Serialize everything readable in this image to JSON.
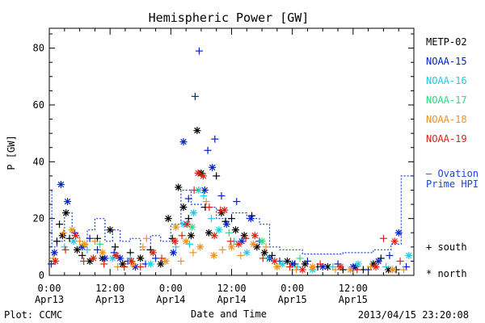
{
  "chart_data": {
    "type": "scatter",
    "title": "Hemispheric Power [GW]",
    "ylabel": "P [GW]",
    "xlabel": "Date and Time",
    "ylim": [
      0,
      87
    ],
    "xlim_hours": [
      0,
      72
    ],
    "yticks": [
      0,
      20,
      40,
      60,
      80
    ],
    "xticks": [
      {
        "hour": 0,
        "time": "0:00",
        "date": "Apr13"
      },
      {
        "hour": 12,
        "time": "12:00",
        "date": "Apr13"
      },
      {
        "hour": 24,
        "time": "0:00",
        "date": "Apr14"
      },
      {
        "hour": 36,
        "time": "12:00",
        "date": "Apr14"
      },
      {
        "hour": 48,
        "time": "0:00",
        "date": "Apr15"
      },
      {
        "hour": 60,
        "time": "12:00",
        "date": "Apr15"
      }
    ],
    "legend": [
      {
        "name": "METP-02",
        "color": "#000000"
      },
      {
        "name": "NOAA-15",
        "color": "#0022cc"
      },
      {
        "name": "NOAA-16",
        "color": "#22c8e8"
      },
      {
        "name": "NOAA-17",
        "color": "#22e080"
      },
      {
        "name": "NOAA-18",
        "color": "#f09020"
      },
      {
        "name": "NOAA-19",
        "color": "#e02010"
      }
    ],
    "ovation_label": "— Ovation Prime HPI",
    "marker_key": [
      {
        "symbol": "+",
        "label": "south"
      },
      {
        "symbol": "*",
        "label": "north"
      }
    ],
    "ovation_series": {
      "name": "Ovation Prime HPI",
      "color": "#1a44dd",
      "values": [
        [
          0,
          30
        ],
        [
          0.5,
          30
        ],
        [
          0.5,
          10
        ],
        [
          1.5,
          10
        ],
        [
          1.5,
          12
        ],
        [
          3,
          12
        ],
        [
          3,
          22
        ],
        [
          4.5,
          22
        ],
        [
          4.5,
          14
        ],
        [
          6,
          14
        ],
        [
          6,
          10
        ],
        [
          7.5,
          10
        ],
        [
          7.5,
          16
        ],
        [
          9,
          16
        ],
        [
          9,
          20
        ],
        [
          11,
          20
        ],
        [
          11,
          12
        ],
        [
          12.5,
          12
        ],
        [
          12.5,
          16
        ],
        [
          14,
          16
        ],
        [
          14,
          12
        ],
        [
          16,
          12
        ],
        [
          16,
          13
        ],
        [
          18,
          13
        ],
        [
          18,
          9
        ],
        [
          20,
          9
        ],
        [
          20,
          14
        ],
        [
          22,
          14
        ],
        [
          22,
          12
        ],
        [
          24,
          12
        ],
        [
          24,
          18
        ],
        [
          26,
          18
        ],
        [
          26,
          30
        ],
        [
          28,
          30
        ],
        [
          28,
          25
        ],
        [
          30,
          25
        ],
        [
          30,
          24
        ],
        [
          33,
          24
        ],
        [
          33,
          20
        ],
        [
          36,
          20
        ],
        [
          36,
          22
        ],
        [
          39,
          22
        ],
        [
          39,
          20
        ],
        [
          41.5,
          20
        ],
        [
          41.5,
          18
        ],
        [
          43.5,
          18
        ],
        [
          43.5,
          10
        ],
        [
          45.5,
          10
        ],
        [
          45.5,
          9
        ],
        [
          50,
          9
        ],
        [
          50,
          7.5
        ],
        [
          58,
          7.5
        ],
        [
          58,
          8
        ],
        [
          64,
          8
        ],
        [
          64,
          9
        ],
        [
          67.5,
          9
        ],
        [
          67.5,
          11
        ],
        [
          69.5,
          11
        ],
        [
          69.5,
          35
        ],
        [
          72,
          35
        ]
      ]
    },
    "series": [
      {
        "name": "METP-02",
        "color": "#000000",
        "points": [
          [
            1.5,
            12,
            "s"
          ],
          [
            2,
            18,
            "s"
          ],
          [
            2.6,
            14,
            "n"
          ],
          [
            3.3,
            22,
            "n"
          ],
          [
            4,
            13,
            "s"
          ],
          [
            5.5,
            9,
            "n"
          ],
          [
            6.5,
            7,
            "s"
          ],
          [
            8,
            5,
            "n"
          ],
          [
            9.5,
            13,
            "s"
          ],
          [
            10.5,
            6,
            "n"
          ],
          [
            12,
            16,
            "n"
          ],
          [
            13,
            10,
            "s"
          ],
          [
            14.5,
            4,
            "n"
          ],
          [
            16,
            8,
            "s"
          ],
          [
            18,
            6,
            "n"
          ],
          [
            20,
            9,
            "s"
          ],
          [
            22,
            4,
            "n"
          ],
          [
            23.5,
            20,
            "n"
          ],
          [
            24.3,
            13,
            "s"
          ],
          [
            25.5,
            31,
            "n"
          ],
          [
            26.5,
            24,
            "n"
          ],
          [
            27.5,
            20,
            "s"
          ],
          [
            28,
            14,
            "n"
          ],
          [
            29.2,
            51,
            "n"
          ],
          [
            30,
            36,
            "n"
          ],
          [
            30.8,
            24,
            "s"
          ],
          [
            31.5,
            15,
            "n"
          ],
          [
            33,
            35,
            "s"
          ],
          [
            34,
            22,
            "n"
          ],
          [
            34.8,
            19,
            "s"
          ],
          [
            36,
            20,
            "s"
          ],
          [
            36.8,
            16,
            "n"
          ],
          [
            38.5,
            14,
            "n"
          ],
          [
            40,
            21,
            "s"
          ],
          [
            41,
            10,
            "n"
          ],
          [
            42.5,
            8,
            "n"
          ],
          [
            44,
            7,
            "s"
          ],
          [
            47,
            5,
            "n"
          ],
          [
            48.5,
            4,
            "s"
          ],
          [
            50.5,
            4,
            "n"
          ],
          [
            53,
            3,
            "s"
          ],
          [
            55,
            3,
            "n"
          ],
          [
            58,
            2,
            "s"
          ],
          [
            60.5,
            3,
            "n"
          ],
          [
            62,
            2,
            "s"
          ],
          [
            64,
            4,
            "n"
          ],
          [
            65.5,
            6,
            "s"
          ],
          [
            67,
            2,
            "n"
          ],
          [
            68.5,
            2,
            "s"
          ]
        ]
      },
      {
        "name": "NOAA-15",
        "color": "#0022cc",
        "points": [
          [
            0.4,
            4,
            "s"
          ],
          [
            1,
            8,
            "n"
          ],
          [
            2.3,
            32,
            "n"
          ],
          [
            3.6,
            26,
            "n"
          ],
          [
            5,
            15,
            "s"
          ],
          [
            6.5,
            10,
            "n"
          ],
          [
            8,
            13,
            "s"
          ],
          [
            9.5,
            9,
            "s"
          ],
          [
            11,
            6,
            "n"
          ],
          [
            12.8,
            8,
            "s"
          ],
          [
            14,
            6,
            "n"
          ],
          [
            15.5,
            5,
            "s"
          ],
          [
            17,
            3,
            "n"
          ],
          [
            19,
            4,
            "s"
          ],
          [
            21,
            6,
            "s"
          ],
          [
            24.5,
            8,
            "n"
          ],
          [
            26.5,
            47,
            "n"
          ],
          [
            27.5,
            27,
            "s"
          ],
          [
            28.8,
            63,
            "s"
          ],
          [
            29.6,
            79,
            "s"
          ],
          [
            30.7,
            30,
            "n"
          ],
          [
            31.3,
            44,
            "s"
          ],
          [
            32.2,
            38,
            "n"
          ],
          [
            32.7,
            48,
            "s"
          ],
          [
            34,
            28,
            "s"
          ],
          [
            35,
            18,
            "n"
          ],
          [
            37,
            26,
            "s"
          ],
          [
            38,
            12,
            "n"
          ],
          [
            39.8,
            20,
            "n"
          ],
          [
            41.5,
            12,
            "s"
          ],
          [
            43.5,
            6,
            "n"
          ],
          [
            45.5,
            5,
            "s"
          ],
          [
            48,
            4,
            "n"
          ],
          [
            51,
            5,
            "s"
          ],
          [
            54,
            3,
            "n"
          ],
          [
            57,
            4,
            "s"
          ],
          [
            60,
            3,
            "n"
          ],
          [
            63,
            2,
            "s"
          ],
          [
            65,
            5,
            "n"
          ],
          [
            67.2,
            7,
            "s"
          ],
          [
            69,
            15,
            "n"
          ],
          [
            70.5,
            3,
            "s"
          ]
        ]
      },
      {
        "name": "NOAA-16",
        "color": "#22c8e8",
        "points": [
          [
            3,
            10,
            "s"
          ],
          [
            4.8,
            12,
            "n"
          ],
          [
            7.5,
            9,
            "s"
          ],
          [
            12.5,
            6,
            "n"
          ],
          [
            16,
            6,
            "s"
          ],
          [
            20,
            4,
            "n"
          ],
          [
            25,
            10,
            "s"
          ],
          [
            26.5,
            18,
            "n"
          ],
          [
            27.7,
            11,
            "s"
          ],
          [
            28.5,
            22,
            "n"
          ],
          [
            29.5,
            30,
            "n"
          ],
          [
            30.5,
            28,
            "s"
          ],
          [
            32,
            20,
            "s"
          ],
          [
            33.5,
            16,
            "n"
          ],
          [
            36.5,
            12,
            "s"
          ],
          [
            39,
            8,
            "n"
          ],
          [
            43,
            6,
            "s"
          ],
          [
            46,
            4,
            "n"
          ],
          [
            49,
            3,
            "s"
          ],
          [
            52,
            2,
            "n"
          ],
          [
            56,
            3,
            "s"
          ],
          [
            61,
            4,
            "n"
          ],
          [
            66.5,
            3,
            "s"
          ],
          [
            71,
            7,
            "n"
          ]
        ]
      },
      {
        "name": "NOAA-17",
        "color": "#22e080",
        "points": [
          [
            10,
            11,
            "s"
          ],
          [
            28.2,
            17,
            "n"
          ],
          [
            35.5,
            15,
            "s"
          ],
          [
            42,
            12,
            "n"
          ],
          [
            49.5,
            6,
            "s"
          ]
        ]
      },
      {
        "name": "NOAA-18",
        "color": "#f09020",
        "points": [
          [
            0.8,
            6,
            "s"
          ],
          [
            2.8,
            15,
            "s"
          ],
          [
            4.5,
            16,
            "n"
          ],
          [
            6,
            12,
            "s"
          ],
          [
            7,
            11,
            "n"
          ],
          [
            9,
            12,
            "s"
          ],
          [
            10.5,
            8,
            "n"
          ],
          [
            13.5,
            3,
            "s"
          ],
          [
            16.5,
            4,
            "n"
          ],
          [
            18.5,
            10,
            "s"
          ],
          [
            19.2,
            13,
            "s"
          ],
          [
            23,
            5,
            "n"
          ],
          [
            25,
            17,
            "n"
          ],
          [
            26,
            5,
            "s"
          ],
          [
            27,
            12,
            "n"
          ],
          [
            28.4,
            8,
            "s"
          ],
          [
            29.8,
            10,
            "n"
          ],
          [
            31,
            26,
            "s"
          ],
          [
            32.5,
            7,
            "n"
          ],
          [
            34.2,
            9,
            "s"
          ],
          [
            36,
            10,
            "n"
          ],
          [
            37.8,
            7,
            "s"
          ],
          [
            40.3,
            11,
            "n"
          ],
          [
            42.8,
            10,
            "s"
          ],
          [
            45,
            3,
            "n"
          ],
          [
            48.8,
            2,
            "s"
          ],
          [
            52,
            3,
            "n"
          ],
          [
            56.5,
            2,
            "s"
          ],
          [
            59.5,
            2,
            "n"
          ],
          [
            63.5,
            3,
            "s"
          ],
          [
            67.8,
            2,
            "n"
          ],
          [
            70,
            2,
            "s"
          ]
        ]
      },
      {
        "name": "NOAA-19",
        "color": "#e02010",
        "points": [
          [
            1.2,
            5,
            "n"
          ],
          [
            3.2,
            9,
            "s"
          ],
          [
            5.2,
            14,
            "n"
          ],
          [
            6.8,
            5,
            "s"
          ],
          [
            8.7,
            6,
            "n"
          ],
          [
            10.8,
            4,
            "s"
          ],
          [
            13.2,
            7,
            "n"
          ],
          [
            14.8,
            3,
            "s"
          ],
          [
            16.2,
            5,
            "n"
          ],
          [
            18,
            3,
            "s"
          ],
          [
            20.5,
            8,
            "n"
          ],
          [
            22.2,
            6,
            "s"
          ],
          [
            24.8,
            12,
            "n"
          ],
          [
            26.2,
            14,
            "s"
          ],
          [
            27.2,
            18,
            "n"
          ],
          [
            28.6,
            30,
            "s"
          ],
          [
            29.4,
            36,
            "n"
          ],
          [
            30.4,
            35,
            "n"
          ],
          [
            31.6,
            24,
            "s"
          ],
          [
            32.6,
            14,
            "n"
          ],
          [
            33.8,
            23,
            "s"
          ],
          [
            34.6,
            23,
            "n"
          ],
          [
            35.8,
            12,
            "s"
          ],
          [
            37.4,
            11,
            "n"
          ],
          [
            38.8,
            13,
            "s"
          ],
          [
            40.6,
            14,
            "n"
          ],
          [
            42.2,
            6,
            "s"
          ],
          [
            44.5,
            5,
            "n"
          ],
          [
            47.5,
            3,
            "s"
          ],
          [
            50,
            2,
            "n"
          ],
          [
            53.5,
            4,
            "s"
          ],
          [
            57.5,
            3,
            "n"
          ],
          [
            60.8,
            2,
            "s"
          ],
          [
            64.5,
            3,
            "n"
          ],
          [
            66,
            13,
            "s"
          ],
          [
            68.2,
            12,
            "n"
          ],
          [
            69.3,
            5,
            "s"
          ]
        ]
      }
    ]
  },
  "footer": {
    "plot_credit": "Plot: CCMC",
    "timestamp": "2013/04/15 23:20:08"
  }
}
